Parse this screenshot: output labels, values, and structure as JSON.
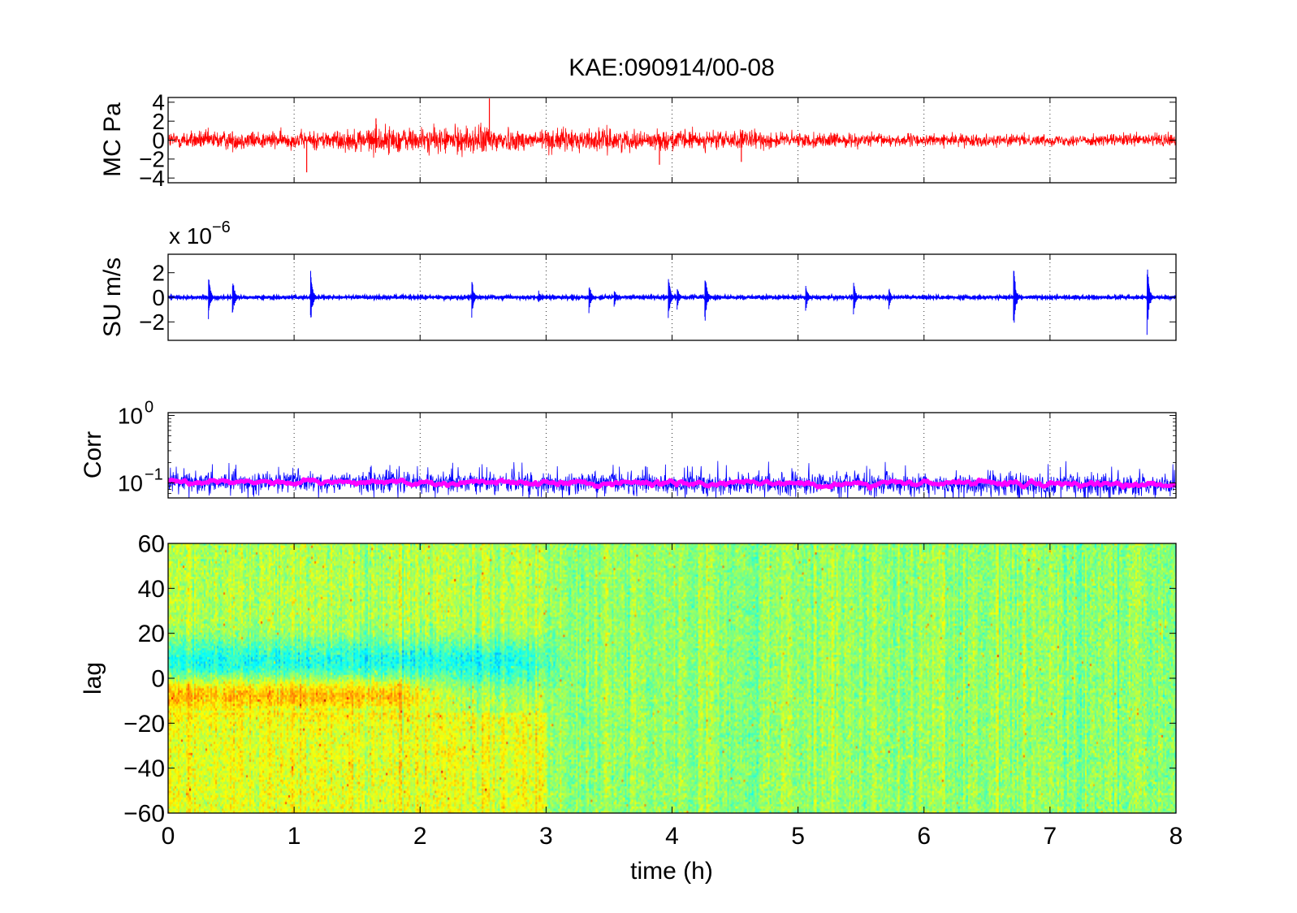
{
  "figure": {
    "title": "KAE:090914/00-08",
    "xlabel": "time (h)"
  },
  "chart_data": [
    {
      "id": "mc",
      "type": "line",
      "title": "KAE:090914/00-08",
      "ylabel": "MC Pa",
      "xlim": [
        0,
        8
      ],
      "ylim": [
        -4.5,
        4.5
      ],
      "yticks": [
        {
          "value": 4,
          "label": "4"
        },
        {
          "value": 2,
          "label": "2"
        },
        {
          "value": 0,
          "label": "0"
        },
        {
          "value": -2,
          "label": "−2"
        },
        {
          "value": -4,
          "label": "−4"
        }
      ],
      "grid": "x-dotted",
      "series": [
        {
          "color": "#ff0000",
          "envelope_x": [
            0,
            0.5,
            1,
            1.5,
            1.65,
            2,
            2.3,
            2.55,
            2.8,
            3,
            3.2,
            3.5,
            3.8,
            4,
            4.3,
            4.6,
            5,
            5.5,
            6,
            6.5,
            7,
            7.5,
            8
          ],
          "envelope_amp": [
            1.2,
            1.3,
            1.1,
            1.5,
            1.9,
            1.6,
            1.8,
            2.0,
            1.3,
            1.6,
            1.5,
            1.5,
            1.1,
            1.4,
            1.2,
            1.3,
            1.0,
            0.9,
            0.8,
            0.8,
            0.7,
            0.8,
            1.0
          ],
          "spikes": [
            {
              "x": 2.55,
              "y": 4.4
            },
            {
              "x": 1.1,
              "y": -3.4
            },
            {
              "x": 1.65,
              "y": 2.3
            },
            {
              "x": 3.9,
              "y": -2.6
            },
            {
              "x": 4.55,
              "y": -2.3
            }
          ]
        }
      ]
    },
    {
      "id": "su",
      "type": "line",
      "ylabel": "SU m/s",
      "yscale_label": "x 10",
      "yscale_exponent": "−6",
      "xlim": [
        0,
        8
      ],
      "ylim": [
        -3.5,
        3.5
      ],
      "yticks": [
        {
          "value": 2,
          "label": "2"
        },
        {
          "value": 0,
          "label": "0"
        },
        {
          "value": -2,
          "label": "−2"
        }
      ],
      "grid": "x-dotted",
      "series": [
        {
          "color": "#0000ff",
          "baseline_amp": 0.12,
          "bursts": [
            {
              "x": 0.33,
              "a": 2.0
            },
            {
              "x": 0.52,
              "a": 2.0
            },
            {
              "x": 1.14,
              "a": 2.6
            },
            {
              "x": 2.42,
              "a": 1.7
            },
            {
              "x": 2.95,
              "a": 0.6
            },
            {
              "x": 3.35,
              "a": 1.5
            },
            {
              "x": 3.55,
              "a": 0.9
            },
            {
              "x": 3.98,
              "a": 2.1
            },
            {
              "x": 4.05,
              "a": 1.1
            },
            {
              "x": 4.27,
              "a": 2.5
            },
            {
              "x": 5.07,
              "a": 1.3
            },
            {
              "x": 5.45,
              "a": 1.6
            },
            {
              "x": 5.73,
              "a": 1.0
            },
            {
              "x": 6.72,
              "a": 3.3
            },
            {
              "x": 7.78,
              "a": 3.4
            }
          ]
        }
      ]
    },
    {
      "id": "corr",
      "type": "line",
      "ylabel": "Corr",
      "yscale": "log",
      "xlim": [
        0,
        8
      ],
      "ylim": [
        0.06,
        1.1
      ],
      "yticks": [
        {
          "value": 1,
          "base": "10",
          "exp": "0"
        },
        {
          "value": 0.1,
          "base": "10",
          "exp": "−1"
        }
      ],
      "grid": "x-dotted",
      "series": [
        {
          "name": "",
          "color": "#0000ff",
          "mean": 0.105,
          "spread": 0.025
        },
        {
          "name": "",
          "color": "#ff00ff",
          "mean": 0.105,
          "spread": 0.013
        }
      ]
    },
    {
      "id": "lag",
      "type": "heatmap",
      "ylabel": "lag",
      "xlabel": "time (h)",
      "xlim": [
        0,
        8
      ],
      "ylim": [
        -60,
        60
      ],
      "yticks": [
        {
          "value": 60,
          "label": "60"
        },
        {
          "value": 40,
          "label": "40"
        },
        {
          "value": 20,
          "label": "20"
        },
        {
          "value": 0,
          "label": "0"
        },
        {
          "value": -20,
          "label": "−20"
        },
        {
          "value": -40,
          "label": "−40"
        },
        {
          "value": -60,
          "label": "−60"
        }
      ],
      "xticks": [
        {
          "value": 0,
          "label": "0"
        },
        {
          "value": 1,
          "label": "1"
        },
        {
          "value": 2,
          "label": "2"
        },
        {
          "value": 3,
          "label": "3"
        },
        {
          "value": 4,
          "label": "4"
        },
        {
          "value": 5,
          "label": "5"
        },
        {
          "value": 6,
          "label": "6"
        },
        {
          "value": 7,
          "label": "7"
        },
        {
          "value": 8,
          "label": "8"
        }
      ],
      "colormap": "jet",
      "features": [
        {
          "desc": "negative band",
          "lag_center": 7,
          "lag_width": 10,
          "t_end": 3.2,
          "strength": -0.45
        },
        {
          "desc": "positive band",
          "lag_center": -7,
          "lag_width": 8,
          "t_end": 2.3,
          "strength": 0.45
        }
      ]
    }
  ]
}
